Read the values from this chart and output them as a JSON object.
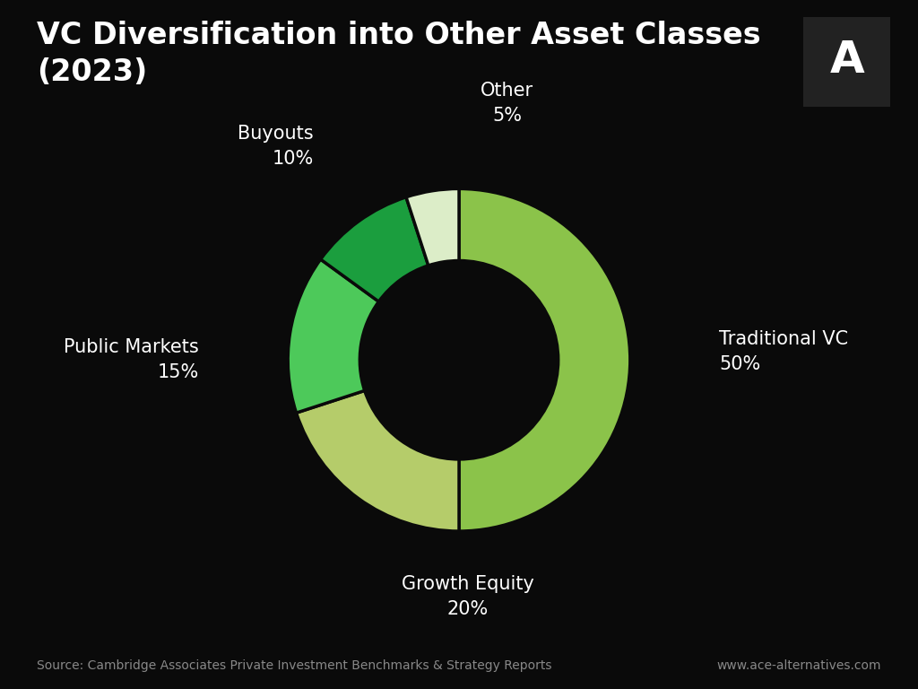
{
  "title": "VC Diversification into Other Asset Classes\n(2023)",
  "slices": [
    {
      "label": "Traditional VC",
      "pct": 50,
      "color": "#8BC34A"
    },
    {
      "label": "Growth Equity",
      "pct": 20,
      "color": "#B5CC6A"
    },
    {
      "label": "Public Markets",
      "pct": 15,
      "color": "#4DC95A"
    },
    {
      "label": "Buyouts",
      "pct": 10,
      "color": "#1B9E3E"
    },
    {
      "label": "Other",
      "pct": 5,
      "color": "#DCEDC8"
    }
  ],
  "background_color": "#0a0a0a",
  "text_color": "#ffffff",
  "source_text": "Source: Cambridge Associates Private Investment Benchmarks & Strategy Reports",
  "website_text": "www.ace-alternatives.com",
  "title_fontsize": 24,
  "label_fontsize": 15,
  "source_fontsize": 10,
  "donut_width": 0.42
}
